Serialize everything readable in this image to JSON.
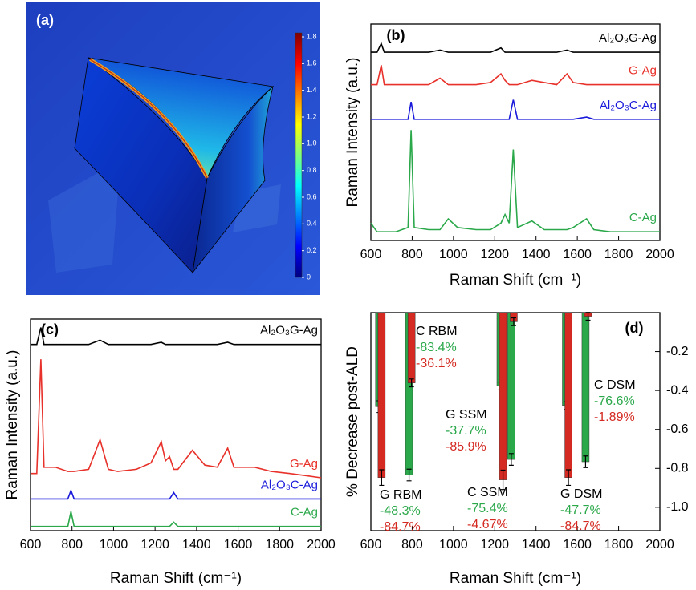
{
  "chart_data": [
    {
      "type": "image",
      "label": "(a)",
      "colorbar": {
        "lim": [
          0,
          1.83
        ],
        "ticks": [
          0,
          0.2,
          0.4,
          0.6,
          0.8,
          {
            "value": 1,
            "label": "1.0"
          },
          1.2,
          1.4,
          1.6,
          1.8
        ]
      }
    },
    {
      "type": "line",
      "label": "(b)",
      "xlabel": "Raman Shift (cm⁻¹)",
      "ylabel": "Raman Intensity (a.u.)",
      "xlim": [
        600,
        2000
      ],
      "ylim": [
        0,
        100
      ],
      "xticks": [
        600,
        800,
        1000,
        1200,
        1400,
        1600,
        1800,
        2000
      ],
      "x": [
        600,
        630,
        650,
        665,
        720,
        780,
        795,
        810,
        880,
        935,
        975,
        1020,
        1110,
        1180,
        1230,
        1250,
        1270,
        1290,
        1310,
        1380,
        1440,
        1500,
        1550,
        1580,
        1645,
        1680,
        1760,
        1850,
        1930,
        2000
      ],
      "series": [
        {
          "name": "Al₂O₃G-Ag",
          "color": "#000000",
          "values": [
            87,
            87,
            91,
            87,
            87,
            87,
            87,
            87,
            87,
            88,
            87,
            87,
            87,
            87,
            89,
            87,
            87,
            87,
            87,
            87,
            87,
            87,
            88,
            87,
            87,
            87,
            87,
            87,
            87,
            87
          ]
        },
        {
          "name": "G-Ag",
          "color": "#e8312a",
          "values": [
            72,
            72,
            81,
            72,
            72,
            72,
            72,
            72,
            72,
            75,
            72,
            72,
            72,
            73,
            77,
            74,
            72,
            72,
            72,
            74,
            73,
            72,
            77,
            73,
            72,
            72,
            72,
            72,
            72,
            72
          ]
        },
        {
          "name": "Al₂O₃C-Ag",
          "color": "#1a1adb",
          "values": [
            56,
            56,
            56,
            56,
            56,
            56,
            64,
            56,
            56,
            56,
            56,
            56,
            56,
            56,
            56,
            56,
            56,
            65,
            56,
            56,
            56,
            56,
            56,
            56,
            57,
            56,
            56,
            56,
            56,
            56
          ]
        },
        {
          "name": "C-Ag",
          "color": "#2aa84a",
          "values": [
            8,
            4,
            4,
            4,
            4,
            6,
            51,
            6,
            5,
            5,
            10,
            6,
            5,
            5,
            8,
            12,
            8,
            42,
            6,
            9,
            5,
            5,
            5,
            6,
            10,
            5,
            4,
            4,
            4,
            4
          ]
        }
      ]
    },
    {
      "type": "line",
      "label": "(c)",
      "xlabel": "Raman Shift (cm⁻¹)",
      "ylabel": "Raman Intensity (a.u.)",
      "xlim": [
        600,
        2000
      ],
      "ylim": [
        0,
        100
      ],
      "xticks": [
        600,
        800,
        1000,
        1200,
        1400,
        1600,
        1800,
        2000
      ],
      "x": [
        600,
        630,
        650,
        665,
        720,
        780,
        795,
        810,
        880,
        935,
        975,
        1020,
        1110,
        1180,
        1230,
        1250,
        1270,
        1290,
        1310,
        1380,
        1440,
        1500,
        1550,
        1580,
        1645,
        1680,
        1760,
        1850,
        1930,
        2000
      ],
      "series": [
        {
          "name": "Al₂O₃G-Ag",
          "color": "#000000",
          "values": [
            88,
            88,
            96,
            88,
            88,
            88,
            88,
            88,
            88,
            90,
            88,
            88,
            88,
            88,
            89,
            88,
            88,
            88,
            88,
            88,
            88,
            88,
            89,
            88,
            88,
            88,
            88,
            88,
            88,
            88
          ]
        },
        {
          "name": "G-Ag",
          "color": "#e8312a",
          "values": [
            27,
            27,
            81,
            30,
            30,
            28,
            28,
            28,
            29,
            43,
            29,
            28,
            29,
            32,
            42,
            33,
            35,
            29,
            29,
            38,
            31,
            30,
            39,
            30,
            30,
            30,
            28,
            27,
            26,
            25
          ]
        },
        {
          "name": "Al₂O₃C-Ag",
          "color": "#1a1adb",
          "values": [
            15,
            15,
            15,
            15,
            15,
            15,
            19,
            15,
            15,
            15,
            15,
            15,
            15,
            15,
            15,
            15,
            15,
            18,
            15,
            15,
            15,
            15,
            15,
            15,
            15,
            15,
            15,
            15,
            15,
            15
          ]
        },
        {
          "name": "C-Ag",
          "color": "#2aa84a",
          "values": [
            2,
            2,
            2,
            2,
            2,
            2,
            9,
            2,
            2,
            2,
            2,
            2,
            2,
            2,
            2,
            2,
            2,
            4,
            2,
            2,
            2,
            2,
            2,
            2,
            2,
            2,
            2,
            2,
            2,
            2
          ]
        }
      ]
    },
    {
      "type": "bar",
      "label": "(d)",
      "xlabel": "Raman Shift (cm⁻¹)",
      "ylabel": "% Decrease post-ALD",
      "xlim": [
        600,
        2000
      ],
      "ylim": [
        -1.12,
        0
      ],
      "xticks": [
        600,
        800,
        1000,
        1200,
        1400,
        1600,
        1800,
        2000
      ],
      "yticks": [
        -0.2,
        -0.4,
        -0.6,
        -0.8,
        {
          "value": -1,
          "label": "-1.0"
        }
      ],
      "groups": [
        "G RBM",
        "C RBM",
        "G SSM",
        "C SSM",
        "G DSM",
        "C DSM"
      ],
      "series": [
        {
          "color": "#2aa84a",
          "x": [
            640,
            785,
            1228,
            1280,
            1545,
            1640
          ],
          "values": [
            -0.483,
            -0.834,
            -0.377,
            -0.754,
            -0.477,
            -0.766
          ],
          "errors": [
            0.03,
            0.03,
            0.02,
            0.03,
            0.02,
            0.03
          ],
          "value_labels": [
            "-48.3%",
            "-83.4%",
            "-37.7%",
            "-75.4%",
            "-47.7%",
            "-76.6%"
          ]
        },
        {
          "color": "#d42a22",
          "x": [
            652,
            797,
            1240,
            1292,
            1557,
            1652
          ],
          "values": [
            -0.847,
            -0.361,
            -0.859,
            -0.0467,
            -0.847,
            -0.0189
          ],
          "errors": [
            0.04,
            0.02,
            0.05,
            0.02,
            0.04,
            0.02
          ],
          "value_labels": [
            "-84.7%",
            "-36.1%",
            "-85.9%",
            "-4.67%",
            "-84.7%",
            "-1.89%"
          ]
        }
      ]
    }
  ]
}
